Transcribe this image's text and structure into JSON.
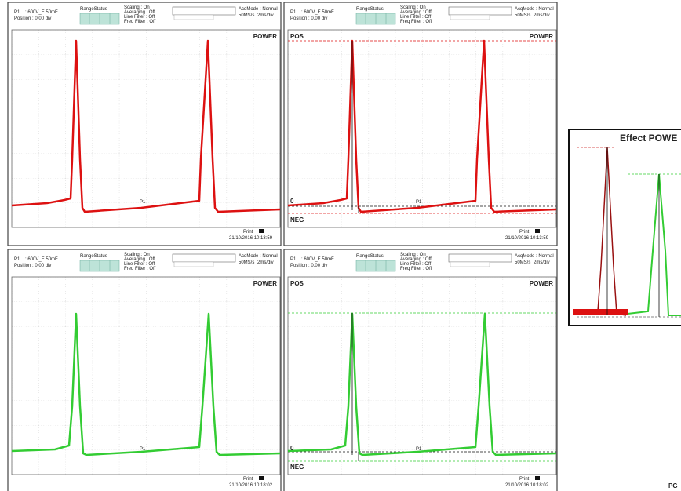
{
  "panels": [
    {
      "channel": "P1",
      "range": ": 600V_E 50mF",
      "position": "Position : 0.00 div",
      "range_status": "RangeStatus",
      "settings": [
        "Scaling : On",
        "Averaging : Off",
        "Line Filter : Off",
        "Freq Filter : Off"
      ],
      "acq_mode": "AcqMode : Normal",
      "sample_rate": "50MS/s",
      "time_div": "2ms/div",
      "trace_label": "POWER",
      "marker": "P1",
      "print": "Print",
      "timestamp": "21/10/2016 10:13:59"
    },
    {
      "channel": "P1",
      "range": ": 600V_E 50mF",
      "position": "Position : 0.00 div",
      "range_status": "RangeStatus",
      "settings": [
        "Scaling : On",
        "Averaging : Off",
        "Line Filter : Off",
        "Freq Filter : Off"
      ],
      "acq_mode": "AcqMode : Normal",
      "sample_rate": "50MS/s",
      "time_div": "2ms/div",
      "trace_label": "POWER",
      "marker": "P1",
      "print": "Print",
      "timestamp": "21/10/2016 10:13:59",
      "pos_label": "POS",
      "zero_label": "0",
      "neg_label": "NEG"
    },
    {
      "channel": "P1",
      "range": ": 600V_E 50mF",
      "position": "Position : 0.00 div",
      "range_status": "RangeStatus",
      "settings": [
        "Scaling : On",
        "Averaging : Off",
        "Line Filter : Off",
        "Freq Filter : Off"
      ],
      "acq_mode": "AcqMode : Normal",
      "sample_rate": "50MS/s",
      "time_div": "2ms/div",
      "trace_label": "POWER",
      "marker": "P1",
      "print": "Print",
      "timestamp": "21/10/2016 10:18:02"
    },
    {
      "channel": "P1",
      "range": ": 600V_E 50mF",
      "position": "Position : 0.00 div",
      "range_status": "RangeStatus",
      "settings": [
        "Scaling : On",
        "Averaging : Off",
        "Line Filter : Off",
        "Freq Filter : Off"
      ],
      "acq_mode": "AcqMode : Normal",
      "sample_rate": "50MS/s",
      "time_div": "2ms/div",
      "trace_label": "POWER",
      "marker": "P1",
      "print": "Print",
      "timestamp": "21/10/2016 10:18:02",
      "pos_label": "POS",
      "zero_label": "0",
      "neg_label": "NEG"
    }
  ],
  "inset": {
    "title": "Effect POWE"
  },
  "footer": "PG"
}
